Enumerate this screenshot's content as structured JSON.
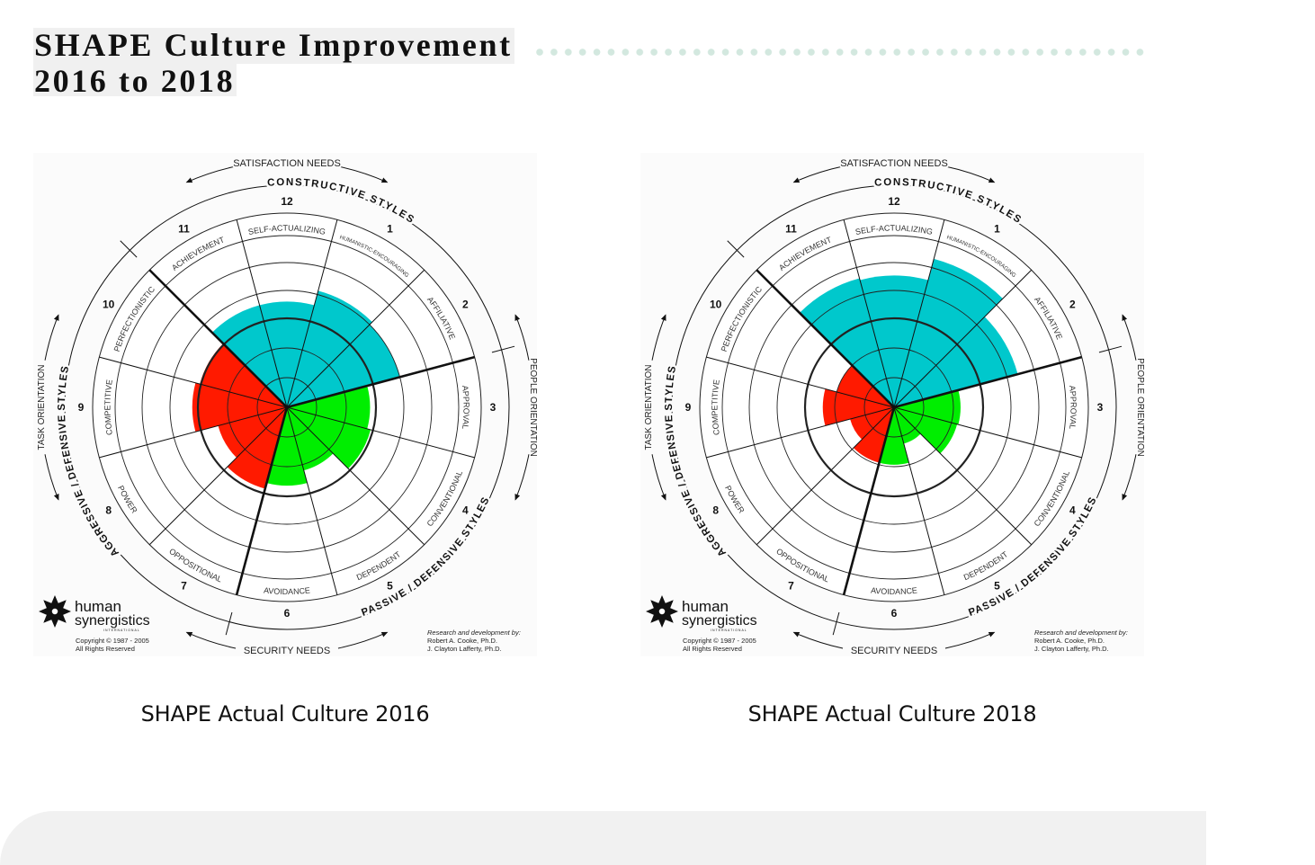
{
  "header": {
    "title_line1": "SHAPE Culture Improvement",
    "title_line2": "2016 to 2018",
    "divider_color": "#d3e8df"
  },
  "captions": [
    "SHAPE Actual Culture 2016",
    "SHAPE Actual Culture 2018"
  ],
  "circumplex": {
    "sector_labels": {
      "1": "HUMANISTIC-ENCOURAGING",
      "2": "AFFILIATIVE",
      "3": "APPROVAL",
      "4": "CONVENTIONAL",
      "5": "DEPENDENT",
      "6": "AVOIDANCE",
      "7": "OPPOSITIONAL",
      "8": "POWER",
      "9": "COMPETITIVE",
      "10": "PERFECTIONISTIC",
      "11": "ACHIEVEMENT",
      "12": "SELF-ACTUALIZING"
    },
    "sector_numbers": {
      "1": "1",
      "2": "2",
      "3": "3",
      "4": "4",
      "5": "5",
      "6": "6",
      "7": "7",
      "8": "8",
      "9": "9",
      "10": "10",
      "11": "11",
      "12": "12"
    },
    "group_labels": {
      "constructive": "CONSTRUCTIVE STYLES",
      "passive": "PASSIVE / DEFENSIVE STYLES",
      "aggressive": "AGGRESSIVE / DEFENSIVE STYLES"
    },
    "needs": {
      "top": "SATISFACTION NEEDS",
      "bottom": "SECURITY NEEDS"
    },
    "orientation": {
      "left": "TASK ORIENTATION",
      "right": "PEOPLE ORIENTATION"
    },
    "logo": {
      "line1": "human",
      "line2": "synergistics",
      "line3": "INTERNATIONAL",
      "icon": "compass-star-icon"
    },
    "copyright": [
      "Copyright © 1987 - 2005",
      "All Rights Reserved"
    ],
    "credits": [
      "Research and development by:",
      "Robert  A. Cooke, Ph.D.",
      "J. Clayton Lafferty, Ph.D."
    ],
    "colors": {
      "constructive": "#00c8cc",
      "passive": "#00ee00",
      "aggressive": "#ff1a00"
    }
  },
  "chart_data": [
    {
      "type": "bar",
      "coordinate_system": "polar (circumplex)",
      "title": "SHAPE Actual Culture 2016",
      "value_unit": "percentile (bold ring = 50th)",
      "rlim": [
        0,
        99
      ],
      "categories": [
        "1 Humanistic-Encouraging",
        "2 Affiliative",
        "3 Approval",
        "4 Conventional",
        "5 Dependent",
        "6 Avoidance",
        "7 Oppositional",
        "8 Power",
        "9 Competitive",
        "10 Perfectionistic",
        "11 Achievement",
        "12 Self-Actualizing"
      ],
      "values": [
        77,
        75,
        45,
        48,
        30,
        41,
        46,
        35,
        55,
        51,
        65,
        65
      ]
    },
    {
      "type": "bar",
      "coordinate_system": "polar (circumplex)",
      "title": "SHAPE Actual Culture 2018",
      "value_unit": "percentile (bold ring = 50th)",
      "rlim": [
        0,
        99
      ],
      "categories": [
        "1 Humanistic-Encouraging",
        "2 Affiliative",
        "3 Approval",
        "4 Conventional",
        "5 Dependent",
        "6 Avoidance",
        "7 Oppositional",
        "8 Power",
        "9 Competitive",
        "10 Perfectionistic",
        "11 Achievement",
        "12 Self-Actualizing"
      ],
      "values": [
        93,
        81,
        31,
        30,
        14,
        24,
        24,
        18,
        35,
        25,
        84,
        83
      ]
    }
  ]
}
